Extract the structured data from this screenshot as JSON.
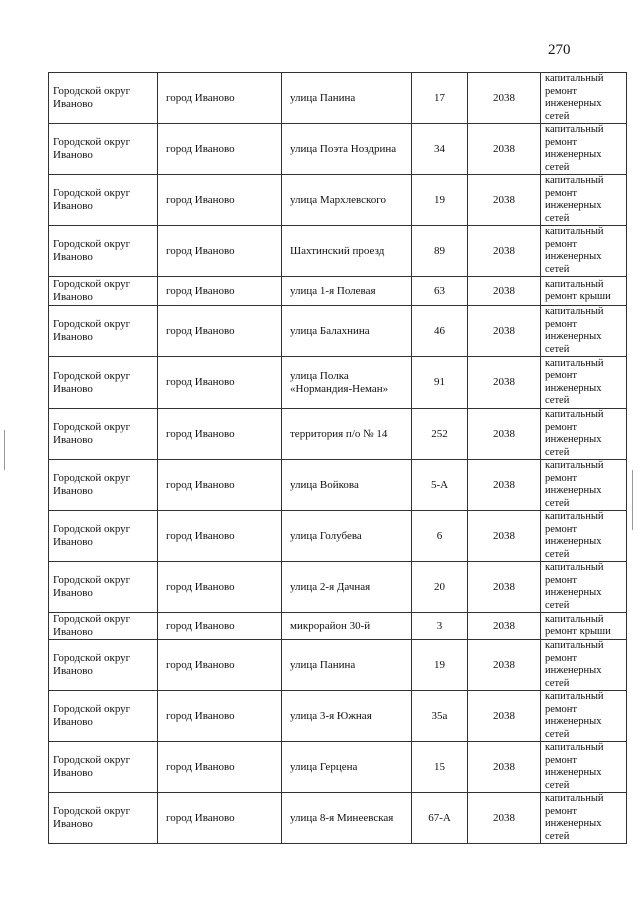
{
  "page_number": "270",
  "rows": [
    {
      "district": "Городской округ Иваново",
      "city": "город Иваново",
      "street": "улица Панина",
      "house": "17",
      "year": "2038",
      "work": "капитальный ремонт инженерных сетей"
    },
    {
      "district": "Городской округ Иваново",
      "city": "город Иваново",
      "street": "улица Поэта Ноздрина",
      "house": "34",
      "year": "2038",
      "work": "капитальный ремонт инженерных сетей"
    },
    {
      "district": "Городской округ Иваново",
      "city": "город Иваново",
      "street": "улица Мархлевского",
      "house": "19",
      "year": "2038",
      "work": "капитальный ремонт инженерных сетей"
    },
    {
      "district": "Городской округ Иваново",
      "city": "город Иваново",
      "street": "Шахтинский проезд",
      "house": "89",
      "year": "2038",
      "work": "капитальный ремонт инженерных сетей"
    },
    {
      "district": "Городской округ Иваново",
      "city": "город Иваново",
      "street": "улица 1-я Полевая",
      "house": "63",
      "year": "2038",
      "work": "капитальный ремонт крыши"
    },
    {
      "district": "Городской округ Иваново",
      "city": "город Иваново",
      "street": "улица Балахнина",
      "house": "46",
      "year": "2038",
      "work": "капитальный ремонт инженерных сетей"
    },
    {
      "district": "Городской округ Иваново",
      "city": "город Иваново",
      "street": "улица Полка «Нормандия-Неман»",
      "house": "91",
      "year": "2038",
      "work": "капитальный ремонт инженерных сетей"
    },
    {
      "district": "Городской округ Иваново",
      "city": "город Иваново",
      "street": "территория п/о № 14",
      "house": "252",
      "year": "2038",
      "work": "капитальный ремонт инженерных сетей"
    },
    {
      "district": "Городской округ Иваново",
      "city": "город Иваново",
      "street": "улица Войкова",
      "house": "5-А",
      "year": "2038",
      "work": "капитальный ремонт инженерных сетей"
    },
    {
      "district": "Городской округ Иваново",
      "city": "город Иваново",
      "street": "улица Голубева",
      "house": "6",
      "year": "2038",
      "work": "капитальный ремонт инженерных сетей"
    },
    {
      "district": "Городской округ Иваново",
      "city": "город Иваново",
      "street": "улица 2-я Дачная",
      "house": "20",
      "year": "2038",
      "work": "капитальный ремонт инженерных сетей"
    },
    {
      "district": "Городской округ Иваново",
      "city": "город Иваново",
      "street": "микрорайон 30-й",
      "house": "3",
      "year": "2038",
      "work": "капитальный ремонт крыши"
    },
    {
      "district": "Городской округ Иваново",
      "city": "город Иваново",
      "street": "улица Панина",
      "house": "19",
      "year": "2038",
      "work": "капитальный ремонт инженерных сетей"
    },
    {
      "district": "Городской округ Иваново",
      "city": "город Иваново",
      "street": "улица 3-я Южная",
      "house": "35а",
      "year": "2038",
      "work": "капитальный ремонт инженерных сетей"
    },
    {
      "district": "Городской округ Иваново",
      "city": "город Иваново",
      "street": "улица Герцена",
      "house": "15",
      "year": "2038",
      "work": "капитальный ремонт инженерных сетей"
    },
    {
      "district": "Городской округ Иваново",
      "city": "город Иваново",
      "street": "улица 8-я Минеевская",
      "house": "67-А",
      "year": "2038",
      "work": "капитальный ремонт инженерных сетей"
    }
  ]
}
